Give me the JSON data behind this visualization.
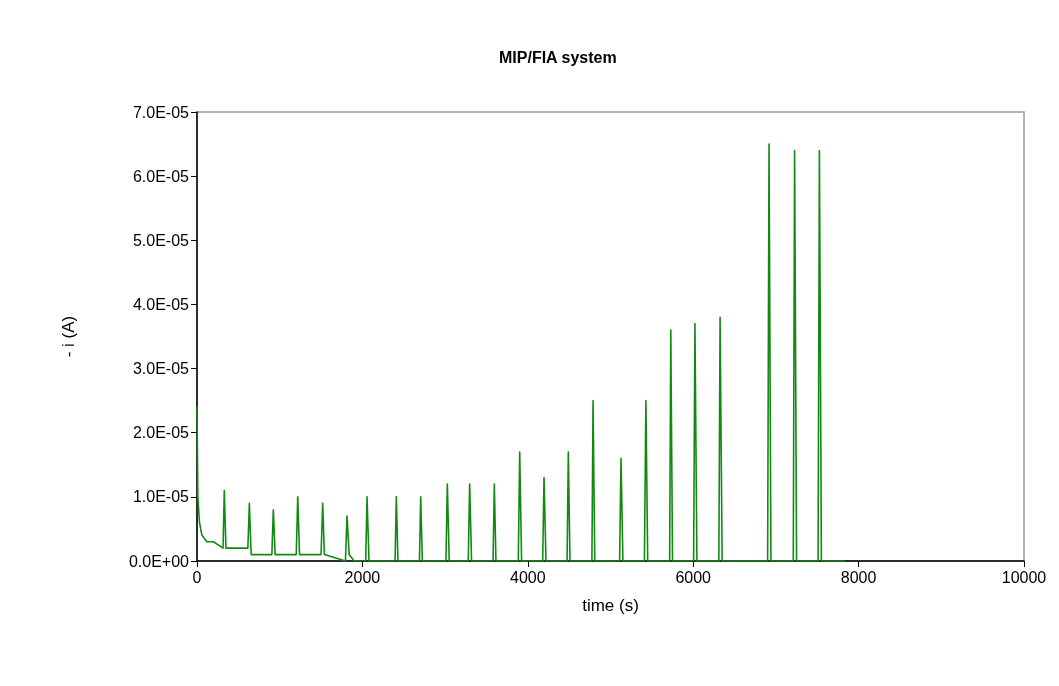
{
  "chart_data": {
    "type": "line",
    "title": "MIP/FIA system",
    "xlabel": "time (s)",
    "ylabel": "- i (A)",
    "xlim": [
      0,
      10000
    ],
    "xticks": [
      0,
      2000,
      4000,
      6000,
      8000,
      10000
    ],
    "ylim": [
      0,
      7e-05
    ],
    "yticks": [
      {
        "value": 0,
        "label": "0.0E+00"
      },
      {
        "value": 1e-05,
        "label": "1.0E-05"
      },
      {
        "value": 2e-05,
        "label": "2.0E-05"
      },
      {
        "value": 3e-05,
        "label": "3.0E-05"
      },
      {
        "value": 4e-05,
        "label": "4.0E-05"
      },
      {
        "value": 5e-05,
        "label": "5.0E-05"
      },
      {
        "value": 6e-05,
        "label": "6.0E-05"
      },
      {
        "value": 7e-05,
        "label": "7.0E-05"
      }
    ],
    "grid": false,
    "marker": "none",
    "line_style": "solid",
    "series": [
      {
        "color": "#128a12",
        "x": [
          0,
          10,
          30,
          60,
          120,
          200,
          315,
          330,
          350,
          450,
          615,
          633,
          655,
          905,
          923,
          945,
          1200,
          1218,
          1240,
          1500,
          1520,
          1540,
          1795,
          1814,
          1840,
          1900,
          2040,
          2056,
          2080,
          2395,
          2410,
          2430,
          2690,
          2705,
          2725,
          3010,
          3027,
          3050,
          3280,
          3297,
          3320,
          3580,
          3595,
          3615,
          3885,
          3902,
          3925,
          4180,
          4196,
          4220,
          4475,
          4490,
          4510,
          4775,
          4789,
          4810,
          5110,
          5127,
          5150,
          5410,
          5428,
          5450,
          5715,
          5729,
          5750,
          6005,
          6021,
          6045,
          6310,
          6325,
          6350,
          6900,
          6917,
          6940,
          7210,
          7226,
          7250,
          7510,
          7526,
          7550,
          7827
        ],
        "values": [
          2.4e-05,
          1e-05,
          6e-06,
          4e-06,
          3e-06,
          3e-06,
          2e-06,
          1.1e-05,
          2e-06,
          2e-06,
          2e-06,
          9e-06,
          1e-06,
          1e-06,
          8e-06,
          1e-06,
          1e-06,
          1e-05,
          1e-06,
          1e-06,
          9e-06,
          1e-06,
          0,
          7e-06,
          1e-06,
          0,
          0,
          1e-05,
          0,
          0,
          1e-05,
          0,
          0,
          1e-05,
          0,
          0,
          1.2e-05,
          0,
          0,
          1.2e-05,
          0,
          0,
          1.2e-05,
          0,
          0,
          1.7e-05,
          0,
          0,
          1.3e-05,
          0,
          0,
          1.7e-05,
          0,
          0,
          2.5e-05,
          0,
          0,
          1.6e-05,
          0,
          0,
          2.5e-05,
          0,
          0,
          3.6e-05,
          0,
          0,
          3.7e-05,
          0,
          0,
          3.8e-05,
          0,
          0,
          6.5e-05,
          0,
          0,
          6.4e-05,
          0,
          0,
          6.4e-05,
          0,
          0
        ]
      }
    ]
  }
}
